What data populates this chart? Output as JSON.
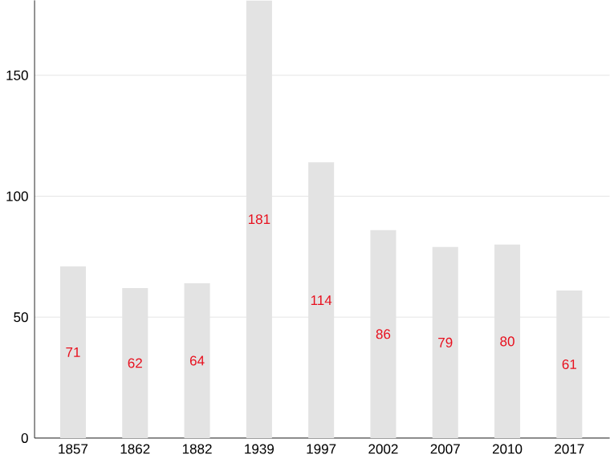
{
  "chart_data": {
    "type": "bar",
    "categories": [
      "1857",
      "1862",
      "1882",
      "1939",
      "1997",
      "2002",
      "2007",
      "2010",
      "2017"
    ],
    "values": [
      71,
      62,
      64,
      181,
      114,
      86,
      79,
      80,
      61
    ],
    "color": "#e3e3e3",
    "data_labels": true,
    "ylim": [
      0,
      181
    ],
    "yticks": [
      0,
      50,
      100,
      150
    ],
    "grid": "y"
  }
}
